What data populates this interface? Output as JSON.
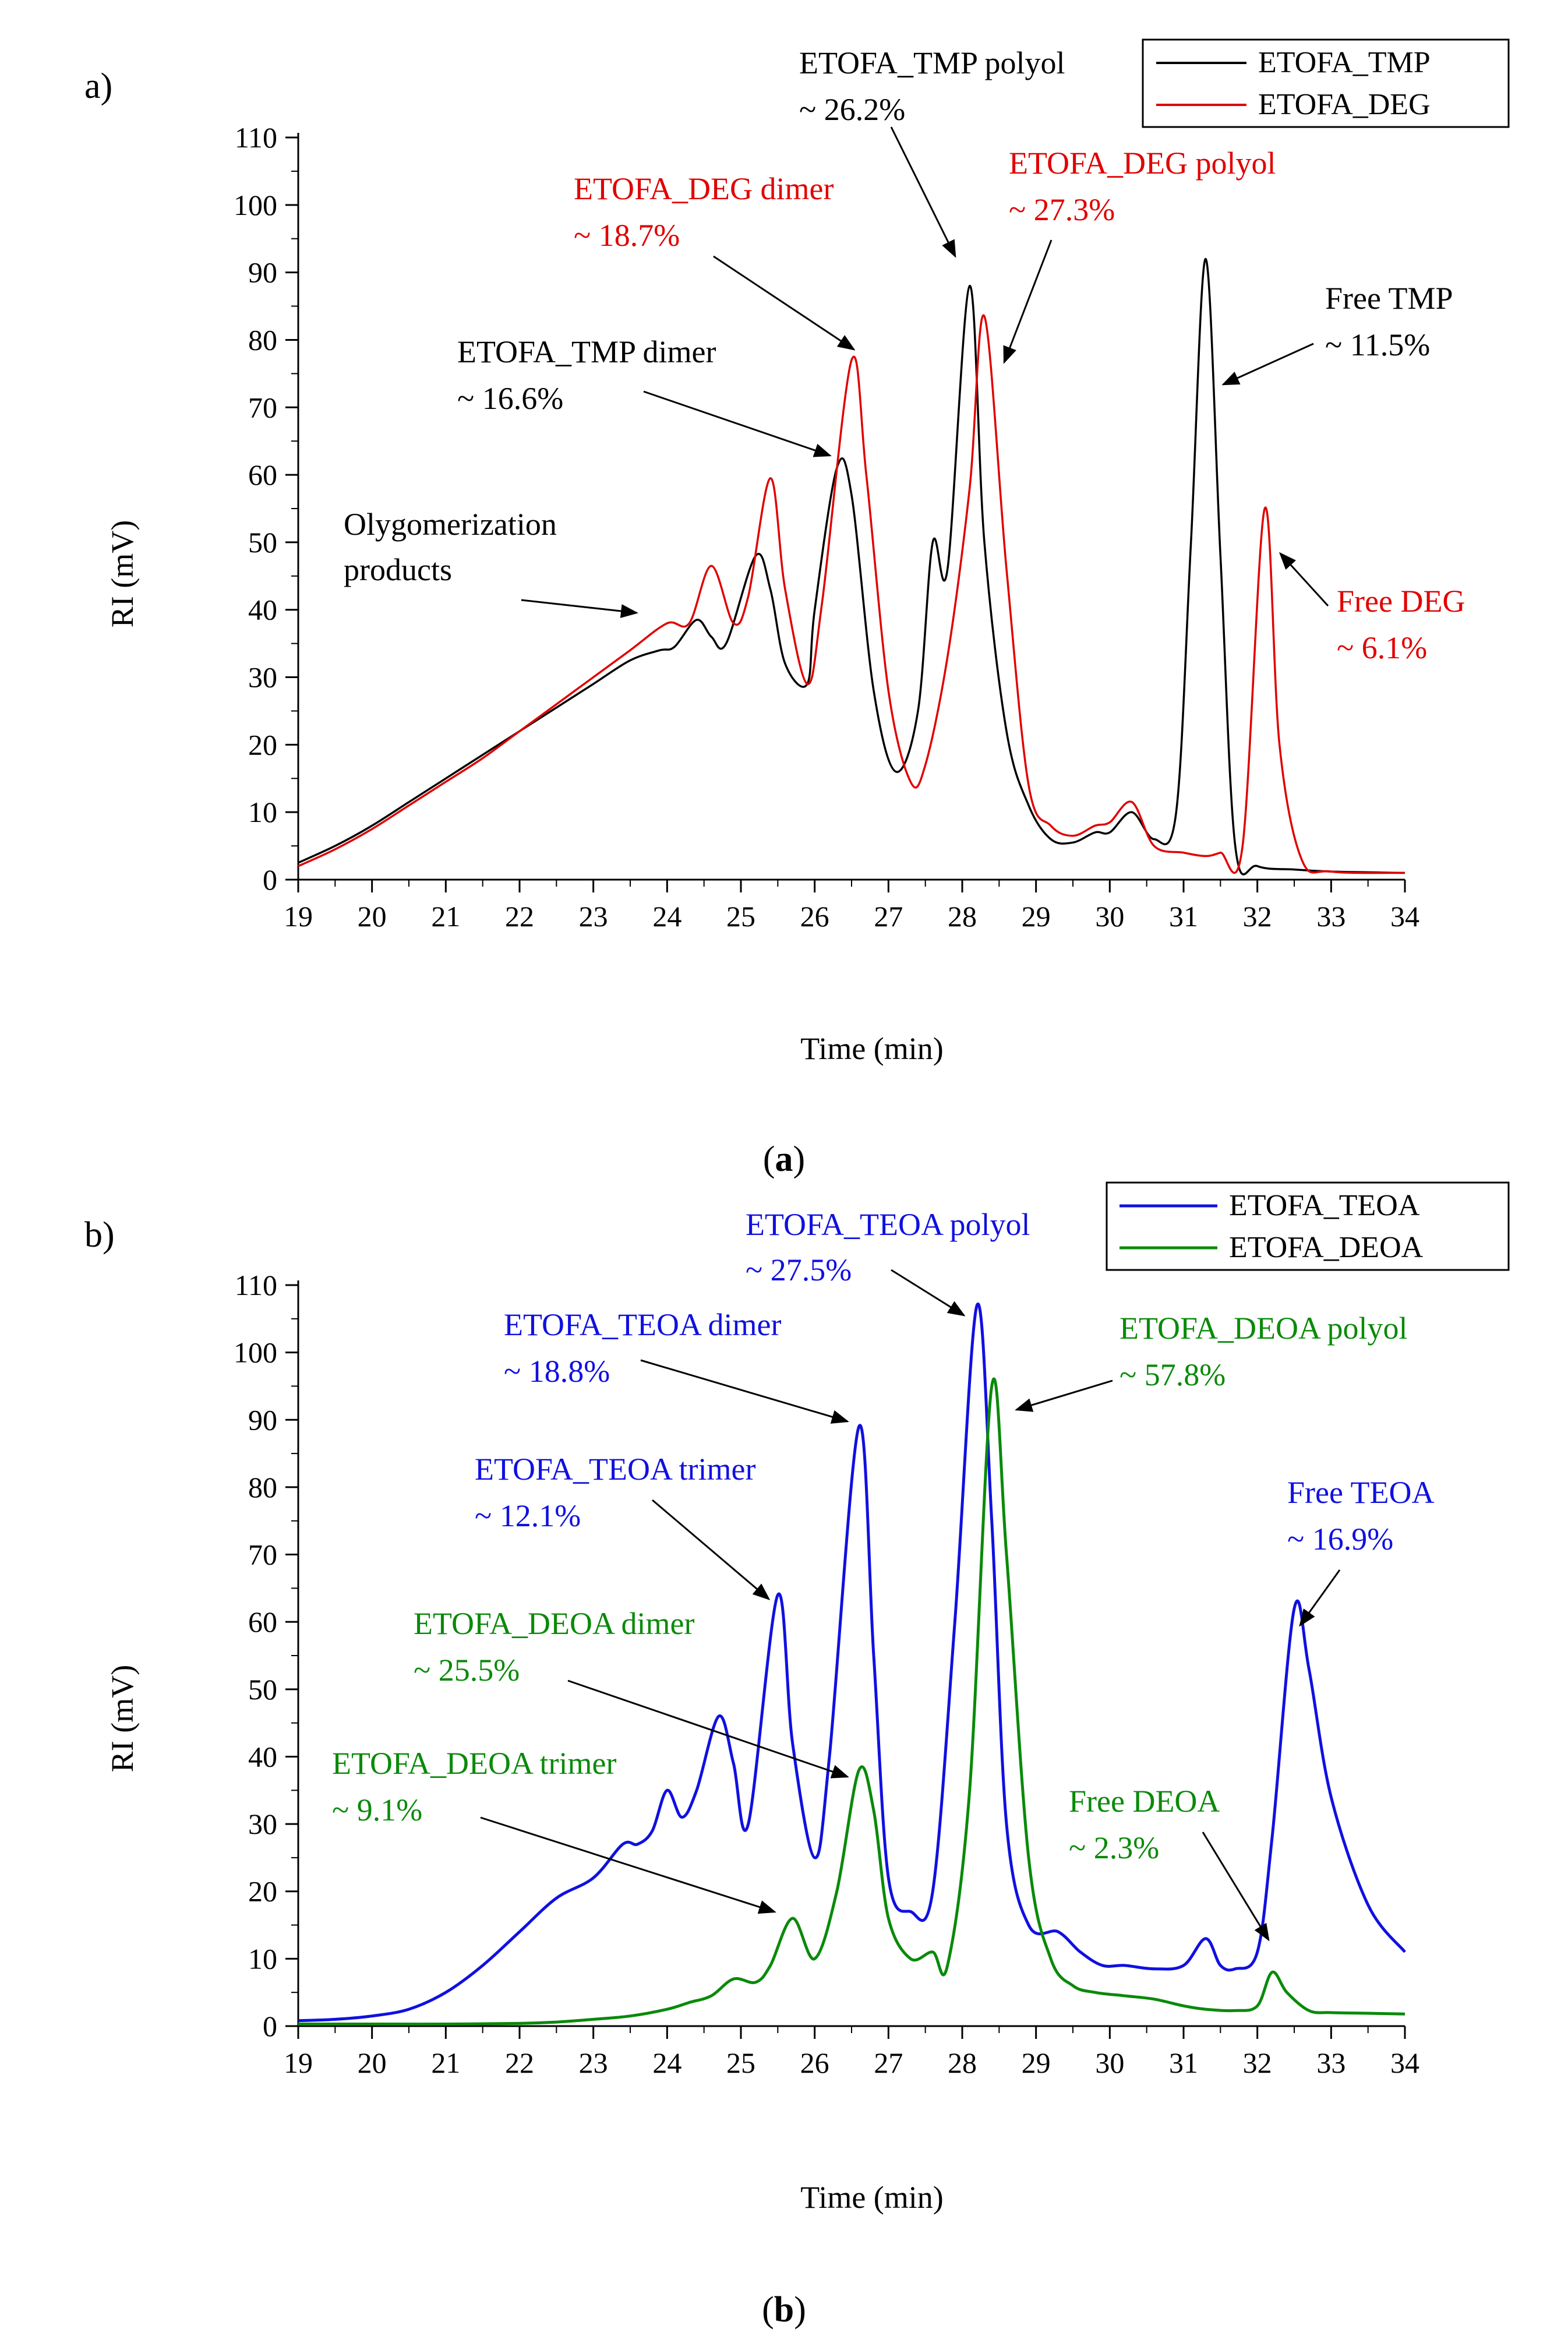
{
  "chart_data": [
    {
      "type": "line",
      "panel_label": "a)",
      "caption_letter": "a",
      "xlabel": "Time (min)",
      "ylabel": "RI (mV)",
      "xlim": [
        19,
        34
      ],
      "ylim": [
        0,
        110
      ],
      "xticks": [
        19,
        20,
        21,
        22,
        23,
        24,
        25,
        26,
        27,
        28,
        29,
        30,
        31,
        32,
        33,
        34
      ],
      "yticks": [
        0,
        10,
        20,
        30,
        40,
        50,
        60,
        70,
        80,
        90,
        100,
        110
      ],
      "grid": false,
      "legend_position": "top-right",
      "series": [
        {
          "name": "ETOFA_TMP",
          "color": "#000000",
          "x": [
            19,
            19.5,
            20,
            20.5,
            21,
            21.5,
            22,
            22.5,
            23,
            23.5,
            23.9,
            24.1,
            24.4,
            24.6,
            24.8,
            25.2,
            25.4,
            25.6,
            25.9,
            26,
            26.3,
            26.5,
            26.8,
            27.1,
            27.4,
            27.6,
            27.8,
            28.1,
            28.3,
            28.6,
            28.9,
            29.2,
            29.5,
            29.8,
            30,
            30.3,
            30.6,
            30.9,
            31.1,
            31.3,
            31.5,
            31.7,
            32,
            32.5,
            33,
            34
          ],
          "values": [
            2.5,
            5,
            8,
            11.5,
            15,
            18.5,
            22,
            25.5,
            29,
            32.5,
            34,
            34.5,
            38.5,
            36,
            35,
            48,
            43,
            32,
            29,
            40,
            61,
            57,
            28,
            16,
            25,
            50,
            46,
            88,
            50,
            22,
            11,
            6,
            5.5,
            7,
            7,
            10,
            6,
            10,
            50,
            92,
            48,
            5,
            2,
            1.5,
            1.2,
            1
          ]
        },
        {
          "name": "ETOFA_DEG",
          "color": "#e00000",
          "x": [
            19,
            19.5,
            20,
            20.5,
            21,
            21.5,
            22,
            22.5,
            23,
            23.5,
            24,
            24.3,
            24.6,
            24.9,
            25.1,
            25.4,
            25.6,
            25.9,
            26.1,
            26.5,
            26.7,
            27,
            27.3,
            27.5,
            27.8,
            28.1,
            28.3,
            28.6,
            28.9,
            29.2,
            29.5,
            29.8,
            30,
            30.3,
            30.6,
            31,
            31.3,
            31.5,
            31.8,
            32.1,
            32.3,
            32.6,
            33,
            34
          ],
          "values": [
            2,
            4.5,
            7.5,
            11,
            14.5,
            18,
            22,
            26,
            30,
            34,
            38,
            38,
            46.5,
            38,
            42,
            59.5,
            43,
            29,
            41,
            77,
            60,
            28,
            14.5,
            17,
            33,
            58,
            83.5,
            46,
            14,
            8,
            6.5,
            8,
            8.5,
            11.5,
            5,
            4,
            3.5,
            4,
            5,
            55,
            20,
            3,
            1.2,
            1
          ]
        }
      ],
      "annotations": [
        {
          "text": "Olygomerization",
          "color": "#000000"
        },
        {
          "text": "products",
          "color": "#000000"
        },
        {
          "text": "ETOFA_TMP dimer",
          "color": "#000000"
        },
        {
          "text": "~ 16.6%",
          "color": "#000000"
        },
        {
          "text": "ETOFA_DEG dimer",
          "color": "#e00000"
        },
        {
          "text": "~ 18.7%",
          "color": "#e00000"
        },
        {
          "text": "ETOFA_TMP polyol",
          "color": "#000000"
        },
        {
          "text": "~ 26.2%",
          "color": "#000000"
        },
        {
          "text": "ETOFA_DEG polyol",
          "color": "#e00000"
        },
        {
          "text": "~ 27.3%",
          "color": "#e00000"
        },
        {
          "text": "Free TMP",
          "color": "#000000"
        },
        {
          "text": "~ 11.5%",
          "color": "#000000"
        },
        {
          "text": "Free DEG",
          "color": "#e00000"
        },
        {
          "text": "~ 6.1%",
          "color": "#e00000"
        }
      ]
    },
    {
      "type": "line",
      "panel_label": "b)",
      "caption_letter": "b",
      "xlabel": "Time (min)",
      "ylabel": "RI (mV)",
      "xlim": [
        19,
        34
      ],
      "ylim": [
        0,
        110
      ],
      "xticks": [
        19,
        20,
        21,
        22,
        23,
        24,
        25,
        26,
        27,
        28,
        29,
        30,
        31,
        32,
        33,
        34
      ],
      "yticks": [
        0,
        10,
        20,
        30,
        40,
        50,
        60,
        70,
        80,
        90,
        100,
        110
      ],
      "grid": false,
      "legend_position": "top-right",
      "series": [
        {
          "name": "ETOFA_TEOA",
          "color": "#1010e0",
          "x": [
            19,
            19.5,
            20,
            20.5,
            21,
            21.5,
            22,
            22.5,
            23,
            23.4,
            23.6,
            23.8,
            24,
            24.2,
            24.4,
            24.7,
            24.9,
            25.1,
            25.5,
            25.7,
            26,
            26.2,
            26.6,
            26.8,
            27,
            27.3,
            27.6,
            27.9,
            28.2,
            28.4,
            28.6,
            28.9,
            29.3,
            29.6,
            29.9,
            30.2,
            30.6,
            31,
            31.3,
            31.5,
            31.7,
            32,
            32.2,
            32.5,
            32.7,
            33,
            33.5,
            34
          ],
          "values": [
            0.8,
            1,
            1.5,
            2.5,
            5,
            9,
            14,
            19,
            22,
            27,
            27,
            29,
            35,
            31,
            35,
            46,
            39,
            30,
            64,
            42,
            25,
            40,
            89,
            55,
            22,
            17,
            20,
            60,
            107,
            75,
            30,
            15,
            14,
            11,
            9,
            9,
            8.5,
            9,
            13,
            9,
            8.5,
            11,
            28,
            62,
            53,
            34,
            18,
            11
          ]
        },
        {
          "name": "ETOFA_DEOA",
          "color": "#0a8a0a",
          "x": [
            19,
            20,
            21,
            22,
            22.5,
            23,
            23.5,
            24,
            24.3,
            24.6,
            24.9,
            25.2,
            25.4,
            25.7,
            26,
            26.3,
            26.6,
            26.8,
            27,
            27.3,
            27.6,
            27.8,
            28.1,
            28.4,
            28.6,
            28.9,
            29.2,
            29.5,
            29.8,
            30.2,
            30.6,
            31,
            31.3,
            31.7,
            32,
            32.2,
            32.4,
            32.7,
            33,
            33.5,
            34
          ],
          "values": [
            0.3,
            0.3,
            0.3,
            0.4,
            0.6,
            1,
            1.5,
            2.5,
            3.5,
            4.5,
            7,
            6.5,
            9,
            16,
            10,
            20,
            38,
            32,
            16,
            10,
            11,
            9,
            35,
            95,
            70,
            25,
            10,
            6,
            5,
            4.5,
            4,
            3,
            2.5,
            2.3,
            3,
            8,
            5,
            2.3,
            2,
            1.9,
            1.8
          ]
        }
      ],
      "annotations": [
        {
          "text": "ETOFA_TEOA polyol",
          "color": "#1010e0"
        },
        {
          "text": "~ 27.5%",
          "color": "#1010e0"
        },
        {
          "text": "ETOFA_TEOA dimer",
          "color": "#1010e0"
        },
        {
          "text": "~ 18.8%",
          "color": "#1010e0"
        },
        {
          "text": "ETOFA_TEOA trimer",
          "color": "#1010e0"
        },
        {
          "text": "~ 12.1%",
          "color": "#1010e0"
        },
        {
          "text": "ETOFA_DEOA polyol",
          "color": "#0a8a0a"
        },
        {
          "text": "~ 57.8%",
          "color": "#0a8a0a"
        },
        {
          "text": "ETOFA_DEOA dimer",
          "color": "#0a8a0a"
        },
        {
          "text": "~ 25.5%",
          "color": "#0a8a0a"
        },
        {
          "text": "ETOFA_DEOA trimer",
          "color": "#0a8a0a"
        },
        {
          "text": "~ 9.1%",
          "color": "#0a8a0a"
        },
        {
          "text": "Free TEOA",
          "color": "#1010e0"
        },
        {
          "text": "~ 16.9%",
          "color": "#1010e0"
        },
        {
          "text": "Free DEOA",
          "color": "#0a8a0a"
        },
        {
          "text": "~ 2.3%",
          "color": "#0a8a0a"
        }
      ]
    }
  ]
}
